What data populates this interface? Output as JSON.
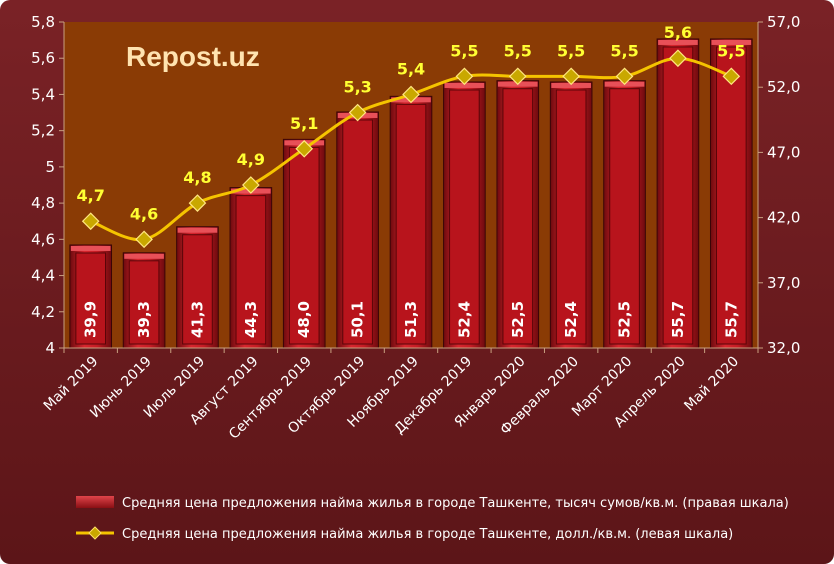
{
  "chart_data": {
    "type": "bar+line",
    "watermark": "Repost.uz",
    "categories": [
      "Май 2019",
      "Июнь 2019",
      "Июль 2019",
      "Август 2019",
      "Сентябрь 2019",
      "Октябрь 2019",
      "Ноябрь 2019",
      "Декабрь 2019",
      "Январь 2020",
      "Февраль 2020",
      "Март 2020",
      "Апрель 2020",
      "Май 2020"
    ],
    "series": [
      {
        "name": "Средняя цена предложения найма жилья в городе Ташкенте, тысяч сумов/кв.м. (правая шкала)",
        "type": "bar",
        "axis": "right",
        "values": [
          39.9,
          39.3,
          41.3,
          44.3,
          48.0,
          50.1,
          51.3,
          52.4,
          52.5,
          52.4,
          52.5,
          55.7,
          55.7
        ],
        "labels": [
          "39,9",
          "39,3",
          "41,3",
          "44,3",
          "48,0",
          "50,1",
          "51,3",
          "52,4",
          "52,5",
          "52,4",
          "52,5",
          "55,7",
          "55,7"
        ]
      },
      {
        "name": "Средняя цена предложения найма жилья в городе Ташкенте, долл./кв.м. (левая шкала)",
        "type": "line",
        "axis": "left",
        "values": [
          4.7,
          4.6,
          4.8,
          4.9,
          5.1,
          5.3,
          5.4,
          5.5,
          5.5,
          5.5,
          5.5,
          5.6,
          5.5
        ],
        "labels": [
          "4,7",
          "4,6",
          "4,8",
          "4,9",
          "5,1",
          "5,3",
          "5,4",
          "5,5",
          "5,5",
          "5,5",
          "5,5",
          "5,6",
          "5,5"
        ]
      }
    ],
    "left_axis": {
      "min": 4,
      "max": 5.8,
      "ticks": [
        "4",
        "4,2",
        "4,4",
        "4,6",
        "4,8",
        "5",
        "5,2",
        "5,4",
        "5,6",
        "5,8"
      ]
    },
    "right_axis": {
      "min": 32,
      "max": 57,
      "ticks": [
        "32,0",
        "37,0",
        "42,0",
        "47,0",
        "52,0",
        "57,0"
      ]
    },
    "legend_position": "bottom",
    "colors": {
      "outer_background": "#6b1c1e",
      "plot_background": "#8a3b05",
      "bar": "#b8141c",
      "line": "#f5c400",
      "marker": "#c9a800",
      "point_label": "#ffff33",
      "text": "#ffffff"
    }
  }
}
